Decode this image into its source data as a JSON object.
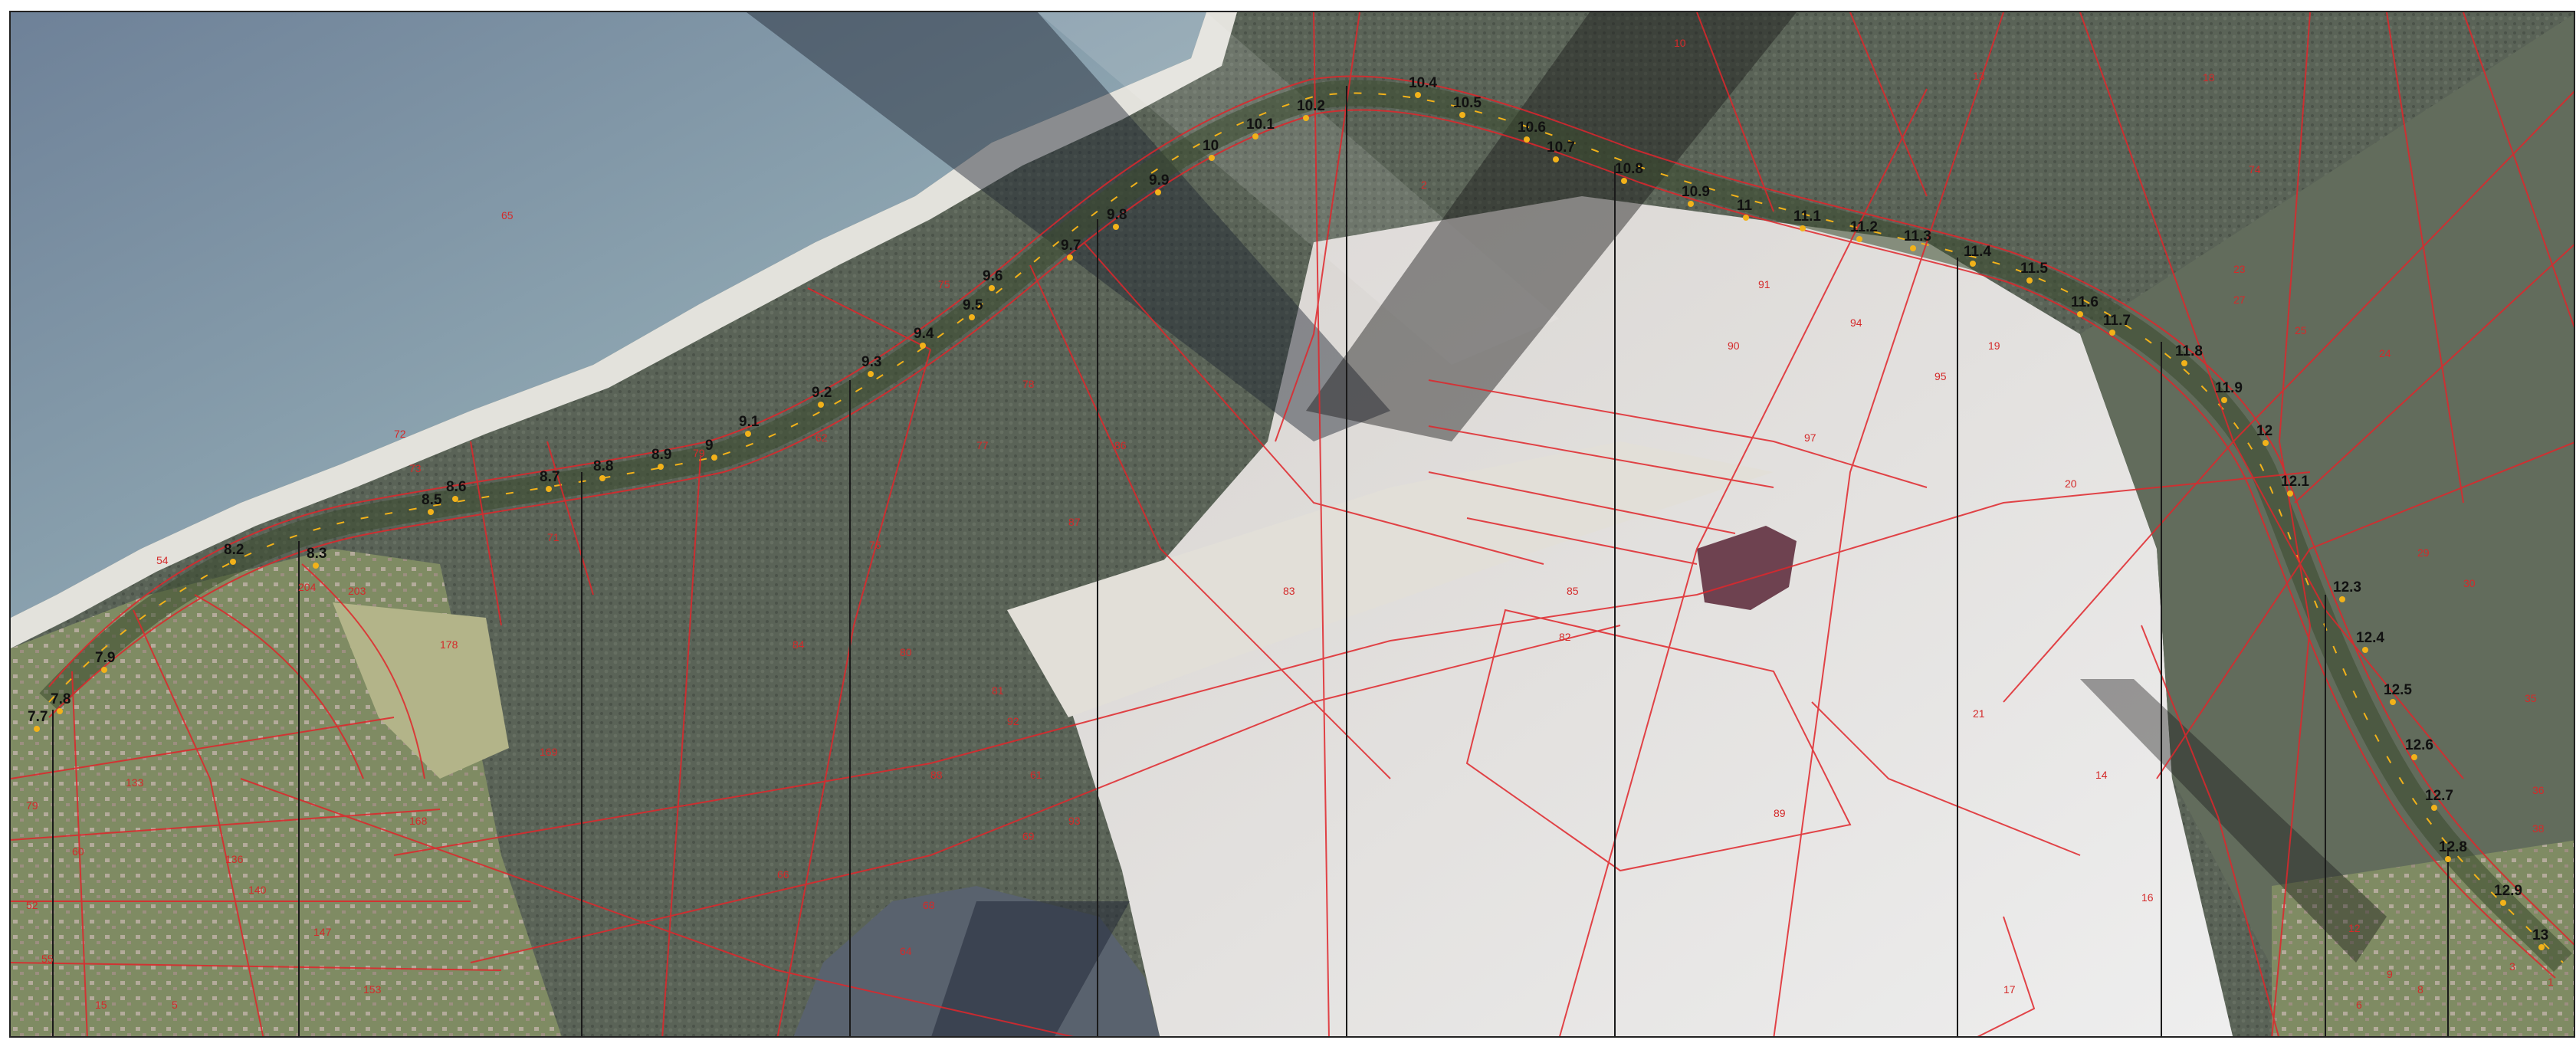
{
  "map": {
    "type": "cadastral-aerial-overlay",
    "colors": {
      "parcel_line": "#e0262b",
      "water": "#6f8ea5",
      "forest": "#5b6458",
      "sand": "#dcdad6",
      "meadow": "#b3b489",
      "marker": "#f2b21a",
      "route": "#3b4a2e"
    },
    "km_markers": [
      {
        "label": "7.7"
      },
      {
        "label": "7.8"
      },
      {
        "label": "7.9"
      },
      {
        "label": "8.2"
      },
      {
        "label": "8.3"
      },
      {
        "label": "8.5"
      },
      {
        "label": "8.6"
      },
      {
        "label": "8.7"
      },
      {
        "label": "8.8"
      },
      {
        "label": "8.9"
      },
      {
        "label": "9"
      },
      {
        "label": "9.1"
      },
      {
        "label": "9.2"
      },
      {
        "label": "9.3"
      },
      {
        "label": "9.4"
      },
      {
        "label": "9.5"
      },
      {
        "label": "9.6"
      },
      {
        "label": "9.7"
      },
      {
        "label": "9.8"
      },
      {
        "label": "9.9"
      },
      {
        "label": "10"
      },
      {
        "label": "10.1"
      },
      {
        "label": "10.2"
      },
      {
        "label": "10.4"
      },
      {
        "label": "10.5"
      },
      {
        "label": "10.6"
      },
      {
        "label": "10.7"
      },
      {
        "label": "10.8"
      },
      {
        "label": "10.9"
      },
      {
        "label": "11"
      },
      {
        "label": "11.1"
      },
      {
        "label": "11.2"
      },
      {
        "label": "11.3"
      },
      {
        "label": "11.4"
      },
      {
        "label": "11.5"
      },
      {
        "label": "11.6"
      },
      {
        "label": "11.7"
      },
      {
        "label": "11.8"
      },
      {
        "label": "11.9"
      },
      {
        "label": "12"
      },
      {
        "label": "12.1"
      },
      {
        "label": "12.3"
      },
      {
        "label": "12.4"
      },
      {
        "label": "12.5"
      },
      {
        "label": "12.6"
      },
      {
        "label": "12.7"
      },
      {
        "label": "12.8"
      },
      {
        "label": "12.9"
      },
      {
        "label": "13"
      }
    ],
    "parcel_labels": [
      {
        "label": "65"
      },
      {
        "label": "61"
      },
      {
        "label": "10"
      },
      {
        "label": "13"
      },
      {
        "label": "18"
      },
      {
        "label": "74"
      },
      {
        "label": "84"
      },
      {
        "label": "91"
      },
      {
        "label": "90"
      },
      {
        "label": "94"
      },
      {
        "label": "95"
      },
      {
        "label": "97"
      },
      {
        "label": "85"
      },
      {
        "label": "82"
      },
      {
        "label": "89"
      },
      {
        "label": "93"
      },
      {
        "label": "83"
      },
      {
        "label": "79"
      },
      {
        "label": "76"
      },
      {
        "label": "77"
      },
      {
        "label": "78"
      },
      {
        "label": "80"
      },
      {
        "label": "81"
      },
      {
        "label": "86"
      },
      {
        "label": "87"
      },
      {
        "label": "88"
      },
      {
        "label": "92"
      },
      {
        "label": "66"
      },
      {
        "label": "68"
      },
      {
        "label": "69"
      },
      {
        "label": "178"
      },
      {
        "label": "136"
      },
      {
        "label": "140"
      },
      {
        "label": "147"
      },
      {
        "label": "153"
      },
      {
        "label": "168"
      },
      {
        "label": "169"
      },
      {
        "label": "133"
      },
      {
        "label": "79"
      },
      {
        "label": "60"
      },
      {
        "label": "54"
      },
      {
        "label": "52"
      },
      {
        "label": "55"
      },
      {
        "label": "15"
      },
      {
        "label": "5"
      },
      {
        "label": "72"
      },
      {
        "label": "73"
      },
      {
        "label": "75"
      },
      {
        "label": "71"
      },
      {
        "label": "62"
      },
      {
        "label": "64"
      },
      {
        "label": "19"
      },
      {
        "label": "14"
      },
      {
        "label": "16"
      },
      {
        "label": "17"
      },
      {
        "label": "24"
      },
      {
        "label": "27"
      },
      {
        "label": "29"
      },
      {
        "label": "30"
      },
      {
        "label": "35"
      },
      {
        "label": "36"
      },
      {
        "label": "38"
      },
      {
        "label": "12"
      },
      {
        "label": "9"
      },
      {
        "label": "8"
      },
      {
        "label": "6"
      },
      {
        "label": "2"
      },
      {
        "label": "3"
      },
      {
        "label": "1"
      },
      {
        "label": "20"
      },
      {
        "label": "21"
      },
      {
        "label": "23"
      },
      {
        "label": "25"
      },
      {
        "label": "204"
      },
      {
        "label": "203"
      }
    ]
  }
}
